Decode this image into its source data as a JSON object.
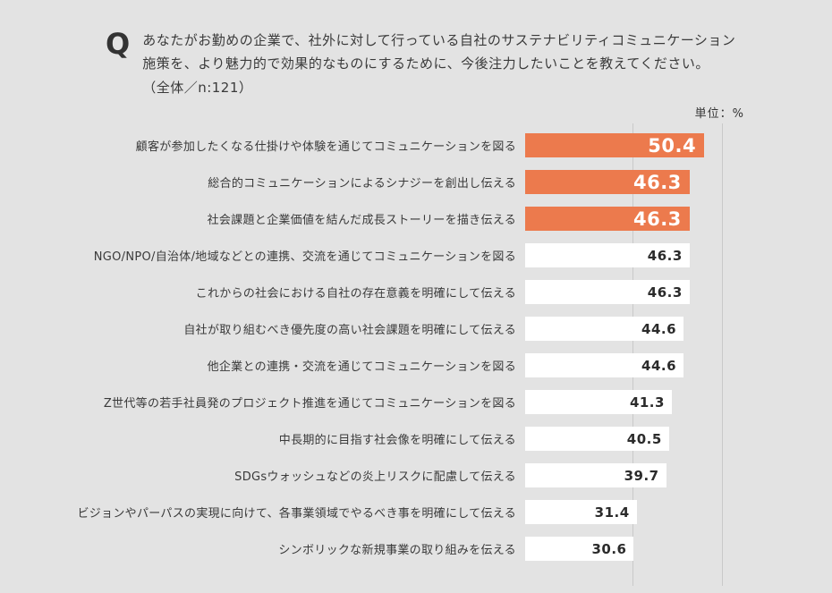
{
  "question": {
    "marker": "Q",
    "line1": "あなたがお勤めの企業で、社外に対して行っている自社のサステナビリティコミュニケーション",
    "line2": "施策を、より魅力的で効果的なものにするために、今後注力したいことを教えてください。",
    "line3": "（全体／n:121）"
  },
  "unit_label": "単位：%",
  "chart_data": {
    "type": "bar",
    "orientation": "horizontal",
    "title": "今後注力したいサステナビリティコミュニケーション施策",
    "unit": "%",
    "sample_note": "全体／n:121",
    "xlim": [
      0,
      65
    ],
    "grid": true,
    "categories": [
      "顧客が参加したくなる仕掛けや体験を通じてコミュニケーションを図る",
      "総合的コミュニケーションによるシナジーを創出し伝える",
      "社会課題と企業価値を結んだ成長ストーリーを描き伝える",
      "NGO/NPO/自治体/地域などとの連携、交流を通じてコミュニケーションを図る",
      "これからの社会における自社の存在意義を明確にして伝える",
      "自社が取り組むべき優先度の高い社会課題を明確にして伝える",
      "他企業との連携・交流を通じてコミュニケーションを図る",
      "Z世代等の若手社員発のプロジェクト推進を通じてコミュニケーションを図る",
      "中長期的に目指す社会像を明確にして伝える",
      "SDGsウォッシュなどの炎上リスクに配慮して伝える",
      "ビジョンやパーパスの実現に向けて、各事業領域でやるべき事を明確にして伝える",
      "シンボリックな新規事業の取り組みを伝える"
    ],
    "values": [
      50.4,
      46.3,
      46.3,
      46.3,
      46.3,
      44.6,
      44.6,
      41.3,
      40.5,
      39.7,
      31.4,
      30.6
    ],
    "highlight_count": 3,
    "bar_color_highlight": "#EC7A4D",
    "bar_color_default": "#ffffff"
  }
}
